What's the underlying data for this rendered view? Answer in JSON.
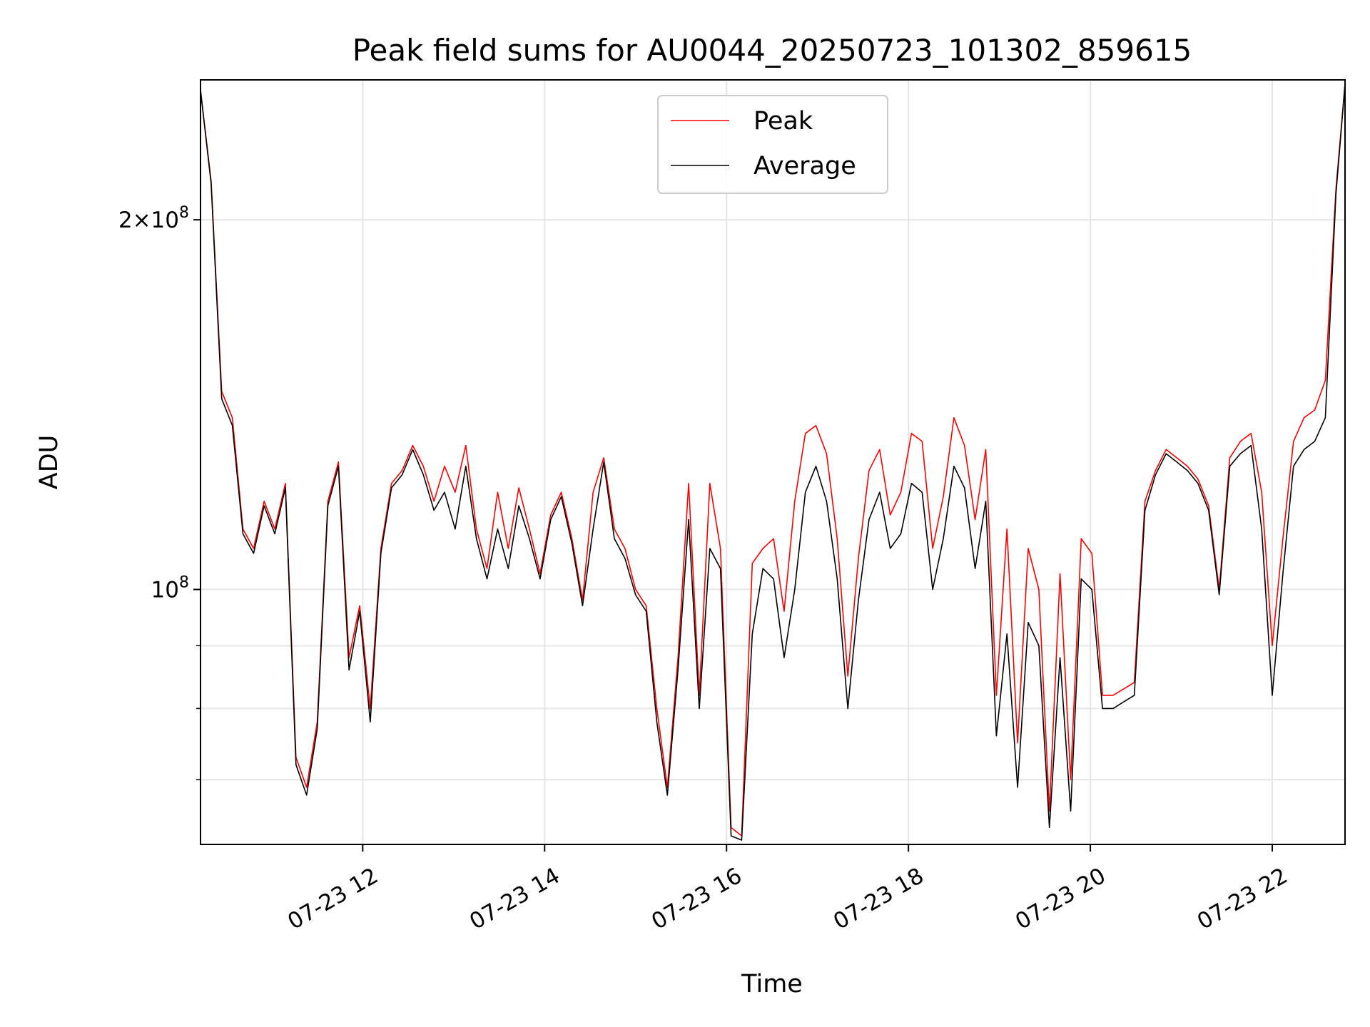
{
  "chart_data": {
    "type": "line",
    "title": "Peak field sums for AU0044_20250723_101302_859615",
    "xlabel": "Time",
    "ylabel": "ADU",
    "y_scale": "log",
    "ylim": [
      62000000,
      260000000
    ],
    "y_major_ticks": [
      {
        "value": 100000000,
        "label": "10^8"
      },
      {
        "value": 200000000,
        "label": "2×10^8"
      }
    ],
    "y_minor_ticks": [
      70000000,
      80000000,
      90000000
    ],
    "xlim": [
      "2025-07-23 10:13",
      "2025-07-23 22:48"
    ],
    "x_ticks": [
      {
        "value": "2025-07-23 12:00",
        "label": "07-23 12"
      },
      {
        "value": "2025-07-23 14:00",
        "label": "07-23 14"
      },
      {
        "value": "2025-07-23 16:00",
        "label": "07-23 16"
      },
      {
        "value": "2025-07-23 18:00",
        "label": "07-23 18"
      },
      {
        "value": "2025-07-23 20:00",
        "label": "07-23 20"
      },
      {
        "value": "2025-07-23 22:00",
        "label": "07-23 22"
      }
    ],
    "grid": true,
    "legend_position": "upper center",
    "series": [
      {
        "name": "Peak",
        "color": "#ff0000",
        "x": [
          "10:13",
          "10:20",
          "10:27",
          "10:34",
          "10:41",
          "10:48",
          "10:55",
          "11:02",
          "11:09",
          "11:16",
          "11:23",
          "11:30",
          "11:37",
          "11:44",
          "11:51",
          "11:58",
          "12:05",
          "12:12",
          "12:19",
          "12:26",
          "12:33",
          "12:40",
          "12:47",
          "12:54",
          "13:01",
          "13:08",
          "13:15",
          "13:22",
          "13:29",
          "13:36",
          "13:43",
          "13:50",
          "13:57",
          "14:04",
          "14:11",
          "14:18",
          "14:25",
          "14:32",
          "14:39",
          "14:46",
          "14:53",
          "15:00",
          "15:07",
          "15:14",
          "15:21",
          "15:28",
          "15:35",
          "15:42",
          "15:49",
          "15:56",
          "16:03",
          "16:10",
          "16:17",
          "16:24",
          "16:31",
          "16:38",
          "16:45",
          "16:52",
          "16:59",
          "17:06",
          "17:13",
          "17:20",
          "17:27",
          "17:34",
          "17:41",
          "17:48",
          "17:55",
          "18:02",
          "18:09",
          "18:16",
          "18:23",
          "18:30",
          "18:37",
          "18:44",
          "18:51",
          "18:58",
          "19:05",
          "19:12",
          "19:19",
          "19:26",
          "19:33",
          "19:40",
          "19:47",
          "19:54",
          "20:01",
          "20:08",
          "20:15",
          "20:22",
          "20:29",
          "20:36",
          "20:43",
          "20:50",
          "20:57",
          "21:04",
          "21:11",
          "21:18",
          "21:25",
          "21:32",
          "21:39",
          "21:46",
          "21:53",
          "22:00",
          "22:07",
          "22:14",
          "22:21",
          "22:28",
          "22:35",
          "22:42",
          "22:48"
        ],
        "values": [
          255000000,
          215000000,
          145000000,
          138000000,
          112000000,
          108000000,
          118000000,
          112000000,
          122000000,
          73000000,
          69000000,
          78000000,
          118000000,
          127000000,
          88000000,
          97000000,
          80000000,
          108000000,
          122000000,
          125000000,
          131000000,
          126000000,
          118000000,
          126000000,
          120000000,
          131000000,
          112000000,
          104000000,
          120000000,
          108000000,
          121000000,
          112000000,
          103000000,
          115000000,
          120000000,
          110000000,
          98000000,
          120000000,
          128000000,
          112000000,
          108000000,
          100000000,
          97000000,
          80000000,
          69000000,
          88000000,
          122000000,
          82000000,
          122000000,
          108000000,
          64000000,
          63000000,
          105000000,
          108000000,
          110000000,
          96000000,
          118000000,
          134000000,
          136000000,
          129000000,
          110000000,
          85000000,
          106000000,
          125000000,
          130000000,
          115000000,
          120000000,
          134000000,
          132000000,
          108000000,
          119000000,
          138000000,
          131000000,
          114000000,
          130000000,
          82000000,
          112000000,
          75000000,
          108000000,
          100000000,
          66000000,
          103000000,
          70000000,
          110000000,
          107000000,
          82000000,
          82000000,
          83000000,
          84000000,
          118000000,
          125000000,
          130000000,
          128000000,
          126000000,
          123000000,
          117000000,
          100000000,
          128000000,
          132000000,
          134000000,
          120000000,
          90000000,
          110000000,
          132000000,
          138000000,
          140000000,
          148000000,
          212000000,
          258000000
        ]
      },
      {
        "name": "Average",
        "color": "#000000",
        "x": [
          "10:13",
          "10:20",
          "10:27",
          "10:34",
          "10:41",
          "10:48",
          "10:55",
          "11:02",
          "11:09",
          "11:16",
          "11:23",
          "11:30",
          "11:37",
          "11:44",
          "11:51",
          "11:58",
          "12:05",
          "12:12",
          "12:19",
          "12:26",
          "12:33",
          "12:40",
          "12:47",
          "12:54",
          "13:01",
          "13:08",
          "13:15",
          "13:22",
          "13:29",
          "13:36",
          "13:43",
          "13:50",
          "13:57",
          "14:04",
          "14:11",
          "14:18",
          "14:25",
          "14:32",
          "14:39",
          "14:46",
          "14:53",
          "15:00",
          "15:07",
          "15:14",
          "15:21",
          "15:28",
          "15:35",
          "15:42",
          "15:49",
          "15:56",
          "16:03",
          "16:10",
          "16:17",
          "16:24",
          "16:31",
          "16:38",
          "16:45",
          "16:52",
          "16:59",
          "17:06",
          "17:13",
          "17:20",
          "17:27",
          "17:34",
          "17:41",
          "17:48",
          "17:55",
          "18:02",
          "18:09",
          "18:16",
          "18:23",
          "18:30",
          "18:37",
          "18:44",
          "18:51",
          "18:58",
          "19:05",
          "19:12",
          "19:19",
          "19:26",
          "19:33",
          "19:40",
          "19:47",
          "19:54",
          "20:01",
          "20:08",
          "20:15",
          "20:22",
          "20:29",
          "20:36",
          "20:43",
          "20:50",
          "20:57",
          "21:04",
          "21:11",
          "21:18",
          "21:25",
          "21:32",
          "21:39",
          "21:46",
          "21:53",
          "22:00",
          "22:07",
          "22:14",
          "22:21",
          "22:28",
          "22:35",
          "22:42",
          "22:48"
        ],
        "values": [
          255000000,
          214000000,
          143000000,
          136000000,
          111000000,
          107000000,
          117000000,
          111000000,
          121000000,
          72000000,
          68000000,
          77000000,
          117000000,
          126000000,
          86000000,
          96000000,
          78000000,
          107000000,
          121000000,
          124000000,
          130000000,
          124000000,
          116000000,
          120000000,
          112000000,
          126000000,
          110000000,
          102000000,
          112000000,
          104000000,
          117000000,
          110000000,
          102000000,
          114000000,
          119000000,
          109000000,
          97000000,
          112000000,
          127000000,
          110000000,
          106000000,
          99000000,
          96000000,
          78000000,
          68000000,
          86000000,
          114000000,
          80000000,
          108000000,
          104000000,
          63000000,
          62500000,
          92000000,
          104000000,
          102000000,
          88000000,
          100000000,
          120000000,
          126000000,
          118000000,
          102000000,
          80000000,
          98000000,
          114000000,
          120000000,
          108000000,
          111000000,
          122000000,
          120000000,
          100000000,
          110000000,
          126000000,
          121000000,
          104000000,
          118000000,
          76000000,
          92000000,
          69000000,
          94000000,
          90000000,
          64000000,
          88000000,
          66000000,
          102000000,
          100000000,
          80000000,
          80000000,
          81000000,
          82000000,
          116000000,
          124000000,
          129000000,
          127000000,
          125000000,
          122000000,
          116000000,
          99000000,
          126000000,
          129000000,
          131000000,
          112000000,
          82000000,
          103000000,
          126000000,
          130000000,
          132000000,
          138000000,
          210000000,
          258000000
        ]
      }
    ]
  }
}
